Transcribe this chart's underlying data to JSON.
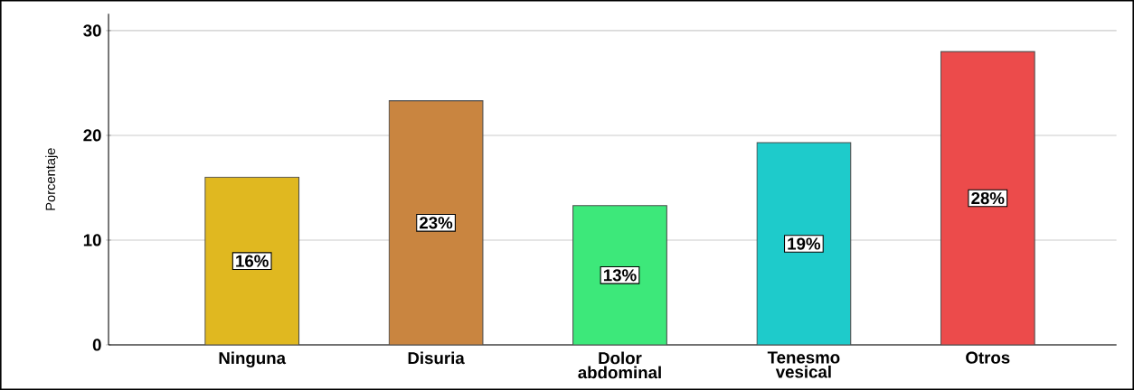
{
  "chart_data": {
    "type": "bar",
    "ylabel": "Porcentaje",
    "categories": [
      "Ninguna",
      "Disuria",
      "Dolor abdominal",
      "Tenesmo vesical",
      "Otros"
    ],
    "values": [
      16,
      23.3,
      13.3,
      19.3,
      28
    ],
    "value_labels": [
      "16%",
      "23%",
      "13%",
      "19%",
      "28%"
    ],
    "colors": [
      "#e0b820",
      "#c98540",
      "#3de87a",
      "#1ecbcb",
      "#ec4b4b"
    ],
    "ylim": [
      0,
      31.6
    ],
    "yticks": [
      0,
      10,
      20,
      30
    ],
    "grid": "y"
  }
}
